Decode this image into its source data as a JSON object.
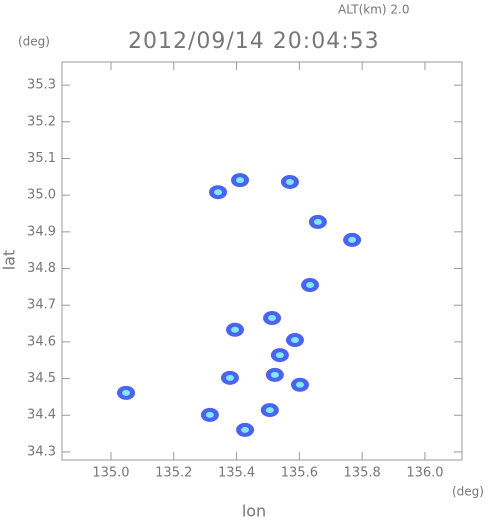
{
  "chart_data": {
    "type": "scatter",
    "title": "2012/09/14 20:04:53",
    "annotation": "ALT(km) 2.0",
    "y_unit": "(deg)",
    "x_unit": "(deg)",
    "x_label": "lon",
    "y_label": "lat",
    "color": "#4a63f0",
    "x": [
      135.411,
      135.341,
      135.57,
      135.659,
      135.048,
      135.538,
      135.522,
      135.586,
      135.506,
      135.602,
      135.395,
      135.634,
      135.768,
      135.379,
      135.427,
      135.315,
      135.513
    ],
    "values": [
      35.041,
      35.008,
      35.036,
      34.927,
      34.461,
      34.564,
      34.51,
      34.605,
      34.414,
      34.483,
      34.633,
      34.755,
      34.878,
      34.502,
      34.36,
      34.401,
      34.665
    ],
    "xlim": [
      134.844,
      136.118
    ],
    "ylim": [
      34.278,
      35.363
    ],
    "xticks": [
      {
        "value": 135,
        "label": "135.0"
      },
      135.2,
      135.4,
      135.6,
      135.8,
      {
        "value": 136,
        "label": "136.0"
      }
    ],
    "yticks": [
      34.3,
      34.4,
      34.5,
      34.6,
      34.7,
      34.8,
      34.9,
      {
        "value": 35,
        "label": "35.0"
      },
      35.1,
      35.2,
      35.3
    ]
  }
}
